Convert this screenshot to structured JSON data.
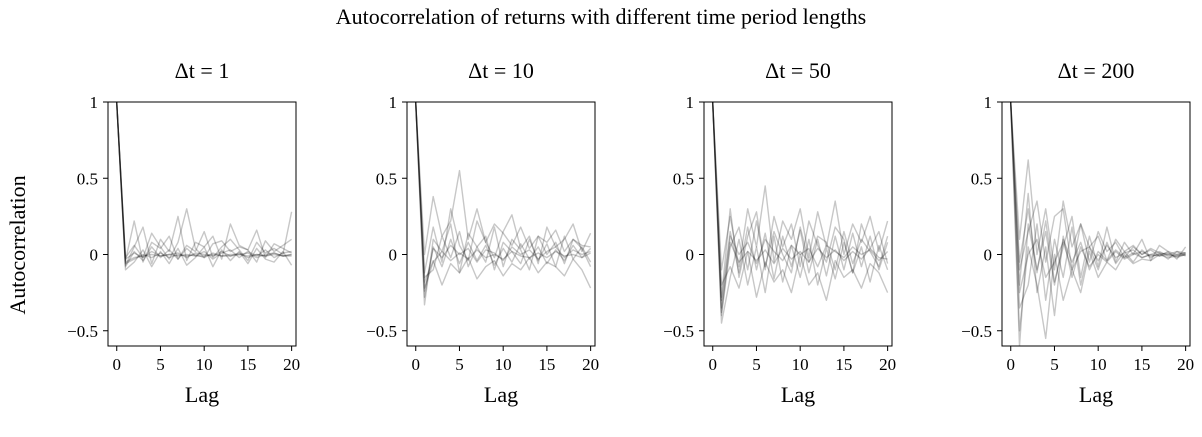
{
  "suptitle": "Autocorrelation of returns with different time period lengths",
  "ylabel": "Autocorrelation",
  "colors": {
    "line": "#000000",
    "axes": "#000000",
    "background": "#ffffff"
  },
  "chart_data": [
    {
      "type": "line",
      "title": "Δt = 1",
      "xlabel": "Lag",
      "ylabel": "Autocorrelation",
      "xlim": [
        -1,
        20.5
      ],
      "ylim": [
        -0.6,
        1
      ],
      "xticks": [
        0,
        5,
        10,
        15,
        20
      ],
      "yticks": [
        -0.5,
        0,
        0.5,
        1
      ],
      "ytick_labels": [
        "−0.5",
        "0",
        "0.5",
        "1"
      ],
      "grid": false,
      "x": [
        0,
        1,
        2,
        3,
        4,
        5,
        6,
        7,
        8,
        9,
        10,
        11,
        12,
        13,
        14,
        15,
        16,
        17,
        18,
        19,
        20
      ],
      "series": [
        {
          "values": [
            1,
            -0.05,
            -0.02,
            -0.01,
            0.0,
            -0.01,
            0.0,
            -0.01,
            0.0,
            -0.01,
            -0.01,
            0.0,
            -0.01,
            0.0,
            0.0,
            -0.01,
            0.0,
            -0.01,
            0.0,
            -0.01,
            -0.01
          ]
        },
        {
          "values": [
            1,
            -0.06,
            -0.03,
            0.0,
            -0.02,
            0.01,
            -0.02,
            0.0,
            -0.01,
            0.0,
            -0.02,
            0.01,
            -0.01,
            -0.01,
            0.01,
            -0.02,
            0.0,
            -0.01,
            0.01,
            -0.01,
            0.0
          ]
        },
        {
          "values": [
            1,
            -0.03,
            0.01,
            -0.02,
            0.02,
            -0.01,
            0.0,
            0.01,
            -0.02,
            0.01,
            0.0,
            -0.01,
            0.02,
            -0.01,
            0.0,
            0.01,
            -0.02,
            0.0,
            0.01,
            -0.01,
            0.0
          ]
        },
        {
          "values": [
            1,
            -0.08,
            0.02,
            -0.04,
            0.05,
            -0.02,
            0.03,
            -0.03,
            0.04,
            -0.01,
            0.02,
            -0.03,
            0.01,
            0.03,
            -0.02,
            0.02,
            -0.01,
            0.03,
            -0.02,
            0.01,
            0.02
          ]
        },
        {
          "values": [
            1,
            -0.04,
            0.22,
            -0.05,
            0.08,
            0.04,
            0.12,
            -0.03,
            0.06,
            0.02,
            0.15,
            -0.02,
            0.05,
            0.1,
            0.03,
            -0.04,
            0.08,
            0.01,
            0.04,
            0.0,
            0.28
          ]
        },
        {
          "values": [
            1,
            -0.07,
            0.05,
            0.18,
            -0.06,
            0.1,
            0.02,
            0.25,
            -0.04,
            0.08,
            0.05,
            0.12,
            -0.03,
            0.2,
            0.06,
            0.03,
            -0.05,
            0.09,
            0.02,
            0.06,
            0.1
          ]
        },
        {
          "values": [
            1,
            -0.1,
            -0.05,
            0.03,
            -0.08,
            0.02,
            -0.06,
            0.04,
            -0.07,
            -0.02,
            0.05,
            -0.08,
            0.03,
            -0.04,
            0.02,
            -0.06,
            0.04,
            -0.03,
            -0.05,
            0.02,
            -0.07
          ]
        },
        {
          "values": [
            1,
            -0.02,
            0.06,
            -0.02,
            0.14,
            0.05,
            -0.03,
            0.08,
            0.3,
            0.04,
            -0.02,
            0.07,
            0.09,
            0.02,
            0.05,
            0.03,
            0.16,
            -0.02,
            0.07,
            0.04,
            0.01
          ]
        }
      ]
    },
    {
      "type": "line",
      "title": "Δt = 10",
      "xlabel": "Lag",
      "xlim": [
        -1,
        20.5
      ],
      "ylim": [
        -0.6,
        1
      ],
      "xticks": [
        0,
        5,
        10,
        15,
        20
      ],
      "yticks": [
        -0.5,
        0,
        0.5,
        1
      ],
      "ytick_labels": [
        "−0.5",
        "0",
        "0.5",
        "1"
      ],
      "grid": false,
      "x": [
        0,
        1,
        2,
        3,
        4,
        5,
        6,
        7,
        8,
        9,
        10,
        11,
        12,
        13,
        14,
        15,
        16,
        17,
        18,
        19,
        20
      ],
      "series": [
        {
          "values": [
            1,
            -0.22,
            -0.05,
            0.02,
            -0.04,
            0.01,
            -0.03,
            0.03,
            -0.02,
            0.0,
            -0.03,
            0.02,
            -0.01,
            -0.02,
            0.01,
            -0.02,
            0.02,
            -0.01,
            0.0,
            -0.02,
            0.01
          ]
        },
        {
          "values": [
            1,
            -0.28,
            0.05,
            -0.08,
            0.1,
            -0.06,
            0.08,
            -0.04,
            0.06,
            -0.07,
            0.04,
            -0.05,
            0.07,
            -0.03,
            0.05,
            -0.06,
            0.03,
            -0.04,
            0.06,
            -0.02,
            0.04
          ]
        },
        {
          "values": [
            1,
            -0.15,
            -0.1,
            0.12,
            -0.02,
            0.15,
            -0.08,
            0.05,
            0.12,
            -0.1,
            0.08,
            0.02,
            -0.06,
            0.1,
            -0.04,
            0.07,
            -0.08,
            0.12,
            -0.03,
            0.05,
            -0.05
          ]
        },
        {
          "values": [
            1,
            -0.33,
            0.1,
            0.02,
            0.2,
            -0.12,
            0.14,
            0.05,
            -0.05,
            0.18,
            -0.08,
            0.1,
            0.03,
            -0.1,
            0.12,
            0.0,
            0.08,
            -0.06,
            0.1,
            0.04,
            -0.08
          ]
        },
        {
          "values": [
            1,
            0.0,
            0.38,
            0.12,
            0.22,
            0.55,
            0.1,
            0.3,
            0.08,
            0.2,
            0.14,
            0.06,
            0.18,
            0.04,
            0.12,
            0.08,
            0.16,
            0.02,
            0.1,
            0.06,
            0.05
          ]
        },
        {
          "values": [
            1,
            -0.18,
            -0.04,
            -0.2,
            -0.06,
            -0.12,
            -0.02,
            -0.16,
            -0.08,
            -0.04,
            -0.14,
            -0.06,
            -0.1,
            -0.02,
            -0.12,
            -0.05,
            -0.08,
            -0.14,
            -0.03,
            -0.1,
            -0.22
          ]
        },
        {
          "values": [
            1,
            -0.24,
            0.04,
            -0.02,
            0.06,
            0.0,
            0.04,
            -0.05,
            0.03,
            0.01,
            -0.04,
            0.05,
            0.0,
            0.03,
            -0.03,
            0.02,
            0.05,
            -0.02,
            0.03,
            0.0,
            0.02
          ]
        },
        {
          "values": [
            1,
            -0.12,
            0.18,
            -0.05,
            0.3,
            0.06,
            -0.04,
            0.22,
            0.08,
            -0.02,
            0.15,
            0.26,
            0.04,
            0.12,
            -0.06,
            0.18,
            0.05,
            0.1,
            0.2,
            0.02,
            0.14
          ]
        }
      ]
    },
    {
      "type": "line",
      "title": "Δt = 50",
      "xlabel": "Lag",
      "xlim": [
        -1,
        20.5
      ],
      "ylim": [
        -0.6,
        1
      ],
      "xticks": [
        0,
        5,
        10,
        15,
        20
      ],
      "yticks": [
        -0.5,
        0,
        0.5,
        1
      ],
      "ytick_labels": [
        "−0.5",
        "0",
        "0.5",
        "1"
      ],
      "grid": false,
      "x": [
        0,
        1,
        2,
        3,
        4,
        5,
        6,
        7,
        8,
        9,
        10,
        11,
        12,
        13,
        14,
        15,
        16,
        17,
        18,
        19,
        20
      ],
      "series": [
        {
          "values": [
            1,
            -0.38,
            0.08,
            -0.05,
            0.02,
            -0.04,
            0.03,
            -0.06,
            0.04,
            -0.03,
            0.02,
            -0.05,
            0.04,
            -0.02,
            0.03,
            -0.04,
            0.02,
            -0.03,
            0.04,
            -0.02,
            -0.03
          ]
        },
        {
          "values": [
            1,
            -0.3,
            0.15,
            -0.12,
            0.18,
            -0.1,
            0.14,
            -0.16,
            0.12,
            -0.08,
            0.16,
            -0.12,
            0.1,
            -0.14,
            0.12,
            -0.1,
            0.14,
            -0.08,
            0.12,
            -0.1,
            0.08
          ]
        },
        {
          "values": [
            1,
            -0.45,
            -0.15,
            0.1,
            -0.2,
            0.05,
            -0.25,
            0.12,
            -0.18,
            0.06,
            -0.15,
            0.1,
            -0.2,
            0.04,
            -0.16,
            0.08,
            -0.12,
            0.05,
            -0.18,
            0.06,
            -0.1
          ]
        },
        {
          "values": [
            1,
            -0.1,
            0.25,
            -0.08,
            0.3,
            0.05,
            0.45,
            -0.05,
            0.22,
            0.1,
            0.3,
            -0.02,
            0.28,
            0.05,
            0.35,
            0.0,
            0.2,
            0.08,
            0.25,
            0.02,
            0.22
          ]
        },
        {
          "values": [
            1,
            -0.4,
            0.05,
            0.18,
            -0.1,
            0.22,
            -0.08,
            0.15,
            0.0,
            -0.12,
            0.18,
            -0.05,
            0.12,
            0.08,
            -0.1,
            0.15,
            -0.06,
            0.1,
            0.02,
            -0.08,
            0.12
          ]
        },
        {
          "values": [
            1,
            -0.2,
            -0.08,
            -0.22,
            0.02,
            -0.28,
            -0.05,
            -0.18,
            -0.1,
            -0.25,
            0.0,
            -0.2,
            -0.12,
            -0.3,
            -0.04,
            -0.15,
            -0.1,
            -0.22,
            -0.06,
            -0.12,
            -0.25
          ]
        },
        {
          "values": [
            1,
            -0.35,
            0.12,
            0.0,
            0.08,
            -0.06,
            0.1,
            0.02,
            -0.04,
            0.06,
            0.0,
            0.04,
            -0.08,
            0.06,
            0.02,
            -0.02,
            0.05,
            0.0,
            0.03,
            -0.04,
            0.02
          ]
        },
        {
          "values": [
            1,
            -0.28,
            0.3,
            -0.15,
            0.12,
            0.28,
            -0.1,
            0.25,
            0.05,
            0.2,
            -0.08,
            0.22,
            0.06,
            -0.05,
            0.18,
            0.1,
            -0.12,
            0.2,
            0.04,
            0.15,
            -0.06
          ]
        }
      ]
    },
    {
      "type": "line",
      "title": "Δt = 200",
      "xlabel": "Lag",
      "xlim": [
        -1,
        20.5
      ],
      "ylim": [
        -0.6,
        1
      ],
      "xticks": [
        0,
        5,
        10,
        15,
        20
      ],
      "yticks": [
        -0.5,
        0,
        0.5,
        1
      ],
      "ytick_labels": [
        "−0.5",
        "0",
        "0.5",
        "1"
      ],
      "grid": false,
      "x": [
        0,
        1,
        2,
        3,
        4,
        5,
        6,
        7,
        8,
        9,
        10,
        11,
        12,
        13,
        14,
        15,
        16,
        17,
        18,
        19,
        20
      ],
      "series": [
        {
          "values": [
            1,
            -0.6,
            0.2,
            -0.1,
            0.15,
            -0.2,
            0.1,
            -0.05,
            0.08,
            -0.1,
            0.02,
            -0.04,
            0.03,
            -0.02,
            0.01,
            -0.02,
            0.0,
            -0.01,
            0.0,
            -0.01,
            0.0
          ]
        },
        {
          "values": [
            1,
            -0.2,
            0.4,
            -0.25,
            0.05,
            -0.4,
            0.12,
            -0.15,
            0.05,
            -0.08,
            0.0,
            -0.05,
            0.02,
            -0.03,
            0.0,
            0.02,
            -0.01,
            0.0,
            0.01,
            -0.02,
            0.0
          ]
        },
        {
          "values": [
            1,
            0.1,
            0.62,
            0.0,
            0.3,
            -0.1,
            0.35,
            0.05,
            0.2,
            -0.05,
            0.15,
            0.02,
            0.08,
            -0.02,
            0.05,
            0.0,
            0.03,
            -0.01,
            0.02,
            0.0,
            0.01
          ]
        },
        {
          "values": [
            1,
            -0.35,
            -0.2,
            0.2,
            -0.3,
            0.1,
            -0.15,
            0.18,
            -0.2,
            0.05,
            -0.1,
            0.08,
            -0.06,
            0.02,
            -0.05,
            0.03,
            -0.02,
            0.01,
            -0.03,
            0.02,
            -0.01
          ]
        },
        {
          "values": [
            1,
            -0.1,
            0.15,
            0.35,
            -0.05,
            0.25,
            0.3,
            -0.1,
            0.2,
            0.05,
            0.12,
            -0.04,
            0.1,
            0.02,
            0.06,
            0.0,
            0.04,
            0.01,
            0.0,
            0.02,
            0.01
          ]
        },
        {
          "values": [
            1,
            -0.5,
            0.05,
            -0.2,
            -0.55,
            0.0,
            -0.3,
            -0.1,
            -0.25,
            0.02,
            -0.15,
            -0.05,
            -0.1,
            0.0,
            -0.06,
            -0.03,
            -0.04,
            0.0,
            -0.02,
            -0.01,
            0.0
          ]
        },
        {
          "values": [
            1,
            -0.25,
            0.0,
            0.1,
            -0.15,
            -0.05,
            0.08,
            -0.1,
            0.02,
            0.05,
            -0.04,
            0.06,
            -0.02,
            0.01,
            0.03,
            -0.02,
            0.0,
            0.02,
            -0.01,
            0.0,
            0.01
          ]
        },
        {
          "values": [
            1,
            -0.05,
            0.3,
            -0.12,
            0.22,
            -0.18,
            0.05,
            0.25,
            -0.15,
            0.12,
            -0.08,
            0.18,
            -0.05,
            0.08,
            0.0,
            0.1,
            -0.04,
            0.06,
            0.02,
            -0.03,
            0.05
          ]
        }
      ]
    }
  ]
}
